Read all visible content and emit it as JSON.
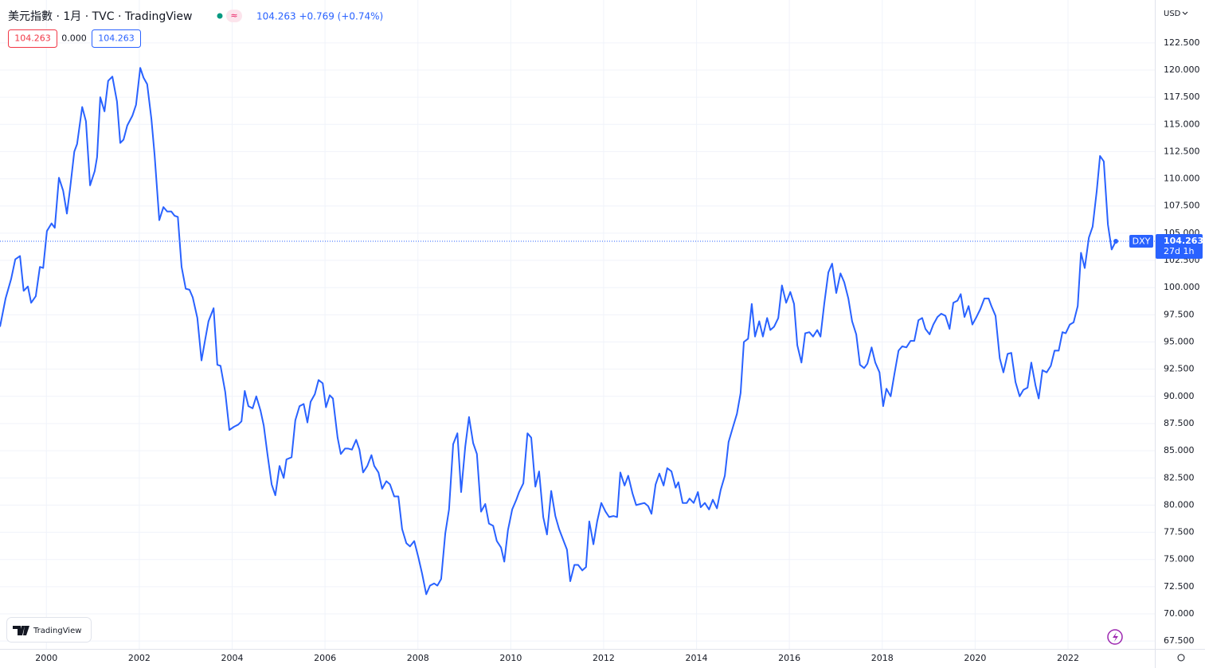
{
  "chart_data": {
    "type": "line",
    "title": "美元指數 · 1月 · TVC · TradingView",
    "quote": "104.263 +0.769 (+0.74%)",
    "legend_values": [
      "104.263",
      "0.000",
      "104.263"
    ],
    "currency": "USD",
    "brand": "TradingView",
    "price_tag": "104.263",
    "countdown": "27d 1h",
    "x": [
      1999.0,
      1999.12,
      1999.24,
      1999.33,
      1999.43,
      1999.51,
      1999.6,
      1999.67,
      1999.77,
      1999.86,
      1999.93,
      2000.01,
      2000.11,
      2000.18,
      2000.27,
      2000.36,
      2000.44,
      2000.51,
      2000.6,
      2000.66,
      2000.77,
      2000.85,
      2000.94,
      2001.04,
      2001.09,
      2001.16,
      2001.25,
      2001.33,
      2001.42,
      2001.52,
      2001.59,
      2001.66,
      2001.74,
      2001.85,
      2001.93,
      2002.02,
      2002.09,
      2002.17,
      2002.26,
      2002.33,
      2002.43,
      2002.52,
      2002.6,
      2002.69,
      2002.76,
      2002.83,
      2002.91,
      2003.0,
      2003.08,
      2003.15,
      2003.25,
      2003.34,
      2003.41,
      2003.49,
      2003.6,
      2003.68,
      2003.75,
      2003.85,
      2003.94,
      2004.04,
      2004.13,
      2004.2,
      2004.27,
      2004.35,
      2004.44,
      2004.52,
      2004.61,
      2004.68,
      2004.76,
      2004.85,
      2004.93,
      2005.02,
      2005.11,
      2005.17,
      2005.28,
      2005.36,
      2005.45,
      2005.54,
      2005.62,
      2005.69,
      2005.78,
      2005.86,
      2005.95,
      2006.02,
      2006.1,
      2006.17,
      2006.27,
      2006.34,
      2006.43,
      2006.5,
      2006.58,
      2006.67,
      2006.74,
      2006.82,
      2006.91,
      2007.0,
      2007.06,
      2007.15,
      2007.23,
      2007.32,
      2007.4,
      2007.49,
      2007.58,
      2007.66,
      2007.75,
      2007.83,
      2007.92,
      2008.01,
      2008.09,
      2008.18,
      2008.26,
      2008.35,
      2008.42,
      2008.5,
      2008.59,
      2008.67,
      2008.76,
      2008.85,
      2008.93,
      2009.02,
      2009.1,
      2009.19,
      2009.27,
      2009.36,
      2009.45,
      2009.53,
      2009.62,
      2009.7,
      2009.79,
      2009.86,
      2009.94,
      2010.03,
      2010.12,
      2010.18,
      2010.27,
      2010.36,
      2010.44,
      2010.53,
      2010.61,
      2010.7,
      2010.78,
      2010.87,
      2010.96,
      2011.04,
      2011.13,
      2011.21,
      2011.28,
      2011.37,
      2011.45,
      2011.54,
      2011.62,
      2011.69,
      2011.78,
      2011.86,
      2011.95,
      2012.04,
      2012.12,
      2012.21,
      2012.29,
      2012.36,
      2012.45,
      2012.53,
      2012.62,
      2012.7,
      2012.79,
      2012.88,
      2012.96,
      2013.03,
      2013.12,
      2013.2,
      2013.29,
      2013.37,
      2013.46,
      2013.55,
      2013.61,
      2013.7,
      2013.79,
      2013.85,
      2013.94,
      2014.03,
      2014.09,
      2014.18,
      2014.27,
      2014.35,
      2014.44,
      2014.52,
      2014.61,
      2014.69,
      2014.78,
      2014.87,
      2014.95,
      2015.02,
      2015.11,
      2015.19,
      2015.26,
      2015.35,
      2015.43,
      2015.52,
      2015.59,
      2015.67,
      2015.76,
      2015.84,
      2015.93,
      2016.02,
      2016.1,
      2016.17,
      2016.26,
      2016.34,
      2016.43,
      2016.51,
      2016.6,
      2016.67,
      2016.75,
      2016.84,
      2016.92,
      2017.01,
      2017.1,
      2017.18,
      2017.27,
      2017.35,
      2017.44,
      2017.52,
      2017.61,
      2017.68,
      2017.77,
      2017.85,
      2017.94,
      2018.02,
      2018.09,
      2018.18,
      2018.26,
      2018.35,
      2018.43,
      2018.52,
      2018.61,
      2018.69,
      2018.78,
      2018.86,
      2018.93,
      2019.02,
      2019.1,
      2019.19,
      2019.27,
      2019.36,
      2019.45,
      2019.53,
      2019.62,
      2019.69,
      2019.77,
      2019.86,
      2019.94,
      2020.03,
      2020.11,
      2020.2,
      2020.29,
      2020.35,
      2020.44,
      2020.53,
      2020.61,
      2020.7,
      2020.78,
      2020.87,
      2020.96,
      2021.04,
      2021.13,
      2021.21,
      2021.3,
      2021.37,
      2021.45,
      2021.54,
      2021.63,
      2021.71,
      2021.8,
      2021.88,
      2021.95,
      2022.04,
      2022.12,
      2022.21,
      2022.28,
      2022.36,
      2022.45,
      2022.53,
      2022.62,
      2022.69,
      2022.77,
      2022.86,
      2022.94,
      2023.03
    ],
    "series": [
      {
        "name": "DXY",
        "color": "#2962ff",
        "values": [
          96.4,
          99.0,
          100.8,
          102.6,
          102.9,
          99.7,
          100.1,
          98.6,
          99.2,
          101.9,
          101.8,
          105.2,
          105.9,
          105.5,
          110.1,
          108.9,
          106.8,
          109.1,
          112.5,
          113.2,
          116.6,
          115.3,
          109.4,
          110.7,
          112.0,
          117.5,
          116.2,
          119.0,
          119.4,
          117.1,
          113.3,
          113.6,
          114.9,
          115.8,
          116.8,
          120.2,
          119.3,
          118.7,
          115.5,
          112.2,
          106.2,
          107.4,
          107.0,
          107.0,
          106.6,
          106.5,
          101.9,
          99.9,
          99.8,
          99.1,
          97.2,
          93.3,
          95.0,
          96.9,
          98.1,
          92.9,
          92.8,
          90.4,
          86.9,
          87.2,
          87.4,
          87.7,
          90.5,
          89.1,
          88.9,
          90.0,
          88.7,
          87.3,
          84.7,
          81.9,
          80.9,
          83.6,
          82.5,
          84.2,
          84.4,
          87.8,
          89.1,
          89.3,
          87.6,
          89.5,
          90.2,
          91.5,
          91.2,
          89.0,
          90.1,
          89.8,
          86.2,
          84.7,
          85.2,
          85.2,
          85.1,
          86.0,
          85.1,
          83.0,
          83.6,
          84.6,
          83.6,
          83.0,
          81.5,
          82.2,
          81.9,
          80.8,
          80.8,
          77.8,
          76.5,
          76.2,
          76.7,
          75.2,
          73.7,
          71.8,
          72.6,
          72.8,
          72.6,
          73.2,
          77.4,
          79.6,
          85.6,
          86.6,
          81.2,
          85.4,
          88.1,
          85.7,
          84.7,
          79.4,
          80.1,
          78.3,
          78.1,
          76.7,
          76.1,
          74.8,
          77.7,
          79.6,
          80.5,
          81.2,
          82.0,
          86.6,
          86.2,
          81.7,
          83.1,
          78.9,
          77.3,
          81.3,
          79.0,
          77.8,
          76.8,
          75.9,
          73.0,
          74.5,
          74.5,
          74.0,
          74.3,
          78.5,
          76.4,
          78.5,
          80.2,
          79.4,
          78.9,
          79.0,
          78.9,
          83.0,
          81.8,
          82.7,
          81.1,
          80.0,
          80.1,
          80.2,
          79.9,
          79.2,
          81.9,
          82.9,
          81.8,
          83.4,
          83.1,
          81.6,
          82.1,
          80.2,
          80.2,
          80.6,
          80.2,
          81.2,
          79.8,
          80.2,
          79.6,
          80.5,
          79.7,
          81.4,
          82.7,
          85.8,
          87.1,
          88.4,
          90.3,
          95.0,
          95.3,
          98.5,
          95.5,
          96.9,
          95.5,
          97.2,
          96.1,
          96.4,
          97.2,
          100.2,
          98.6,
          99.6,
          98.5,
          94.7,
          93.1,
          95.8,
          95.9,
          95.5,
          96.1,
          95.5,
          98.5,
          101.4,
          102.2,
          99.5,
          101.3,
          100.5,
          99.0,
          96.9,
          95.7,
          92.9,
          92.6,
          93.0,
          94.5,
          93.1,
          92.2,
          89.1,
          90.7,
          90.0,
          92.0,
          94.2,
          94.6,
          94.5,
          95.1,
          95.1,
          97.0,
          97.2,
          96.2,
          95.7,
          96.6,
          97.3,
          97.6,
          97.4,
          96.2,
          98.6,
          98.8,
          99.4,
          97.3,
          98.3,
          96.6,
          97.3,
          98.0,
          99.0,
          99.0,
          98.3,
          97.4,
          93.5,
          92.2,
          93.9,
          94.0,
          91.3,
          90.0,
          90.6,
          90.8,
          93.1,
          91.0,
          89.8,
          92.4,
          92.2,
          92.8,
          94.2,
          94.2,
          95.9,
          95.8,
          96.6,
          96.8,
          98.3,
          103.2,
          101.8,
          104.6,
          105.6,
          108.9,
          112.1,
          111.6,
          105.8,
          103.5,
          104.263
        ]
      }
    ],
    "xlim": [
      1999,
      2023.87
    ],
    "xticks": [
      2000,
      2002,
      2004,
      2006,
      2008,
      2010,
      2012,
      2014,
      2016,
      2018,
      2020,
      2022
    ],
    "ylim": [
      66.78,
      126.44
    ],
    "yticks": [
      {
        "value": 67.5,
        "label": "67.500"
      },
      {
        "value": 70,
        "label": "70.000"
      },
      {
        "value": 72.5,
        "label": "72.500"
      },
      {
        "value": 75,
        "label": "75.000"
      },
      {
        "value": 77.5,
        "label": "77.500"
      },
      {
        "value": 80,
        "label": "80.000"
      },
      {
        "value": 82.5,
        "label": "82.500"
      },
      {
        "value": 85,
        "label": "85.000"
      },
      {
        "value": 87.5,
        "label": "87.500"
      },
      {
        "value": 90,
        "label": "90.000"
      },
      {
        "value": 92.5,
        "label": "92.500"
      },
      {
        "value": 95,
        "label": "95.000"
      },
      {
        "value": 97.5,
        "label": "97.500"
      },
      {
        "value": 100,
        "label": "100.000"
      },
      {
        "value": 102.5,
        "label": "102.500"
      },
      {
        "value": 105,
        "label": "105.000"
      },
      {
        "value": 107.5,
        "label": "107.500"
      },
      {
        "value": 110,
        "label": "110.000"
      },
      {
        "value": 112.5,
        "label": "112.500"
      },
      {
        "value": 115,
        "label": "115.000"
      },
      {
        "value": 117.5,
        "label": "117.500"
      },
      {
        "value": 120,
        "label": "120.000"
      },
      {
        "value": 122.5,
        "label": "122.500"
      }
    ],
    "grid": true
  }
}
